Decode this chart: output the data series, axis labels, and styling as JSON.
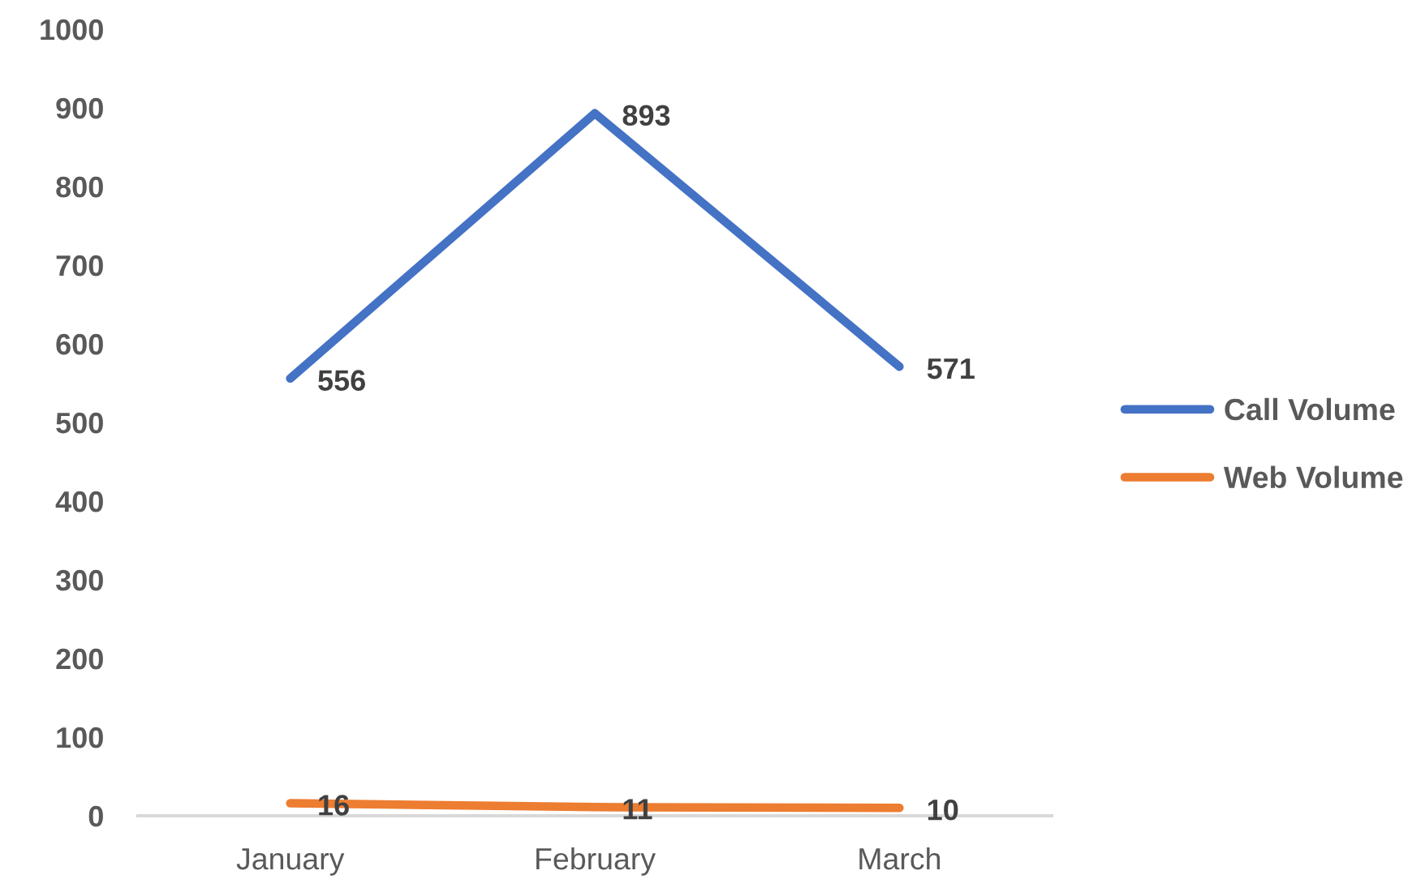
{
  "chart_data": {
    "type": "line",
    "categories": [
      "January",
      "February",
      "March"
    ],
    "series": [
      {
        "name": "Call Volume",
        "color": "#4472c4",
        "values": [
          556,
          893,
          571
        ]
      },
      {
        "name": "Web Volume",
        "color": "#ed7d31",
        "values": [
          16,
          11,
          10
        ]
      }
    ],
    "ylim": [
      0,
      1000
    ],
    "yticks": [
      0,
      100,
      200,
      300,
      400,
      500,
      600,
      700,
      800,
      900,
      1000
    ],
    "grid": false,
    "legend": "right",
    "data_labels": true,
    "marker": "none",
    "line_style": "solid"
  }
}
